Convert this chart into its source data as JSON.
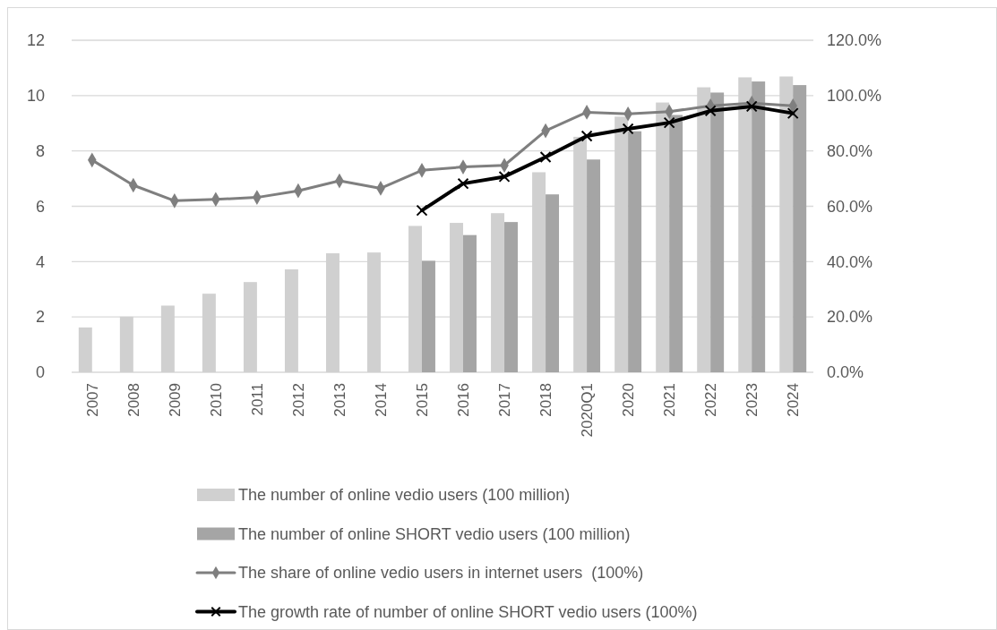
{
  "chart_data": {
    "type": "bar",
    "categories": [
      "2007",
      "2008",
      "2009",
      "2010",
      "2011",
      "2012",
      "2013",
      "2014",
      "2015",
      "2016",
      "2017",
      "2018",
      "2020Q1",
      "2020",
      "2021",
      "2022",
      "2023",
      "2024"
    ],
    "series": [
      {
        "name": "The number of online vedio users (100 million)",
        "color": "#d0d0d0",
        "values": [
          1.62,
          2.01,
          2.41,
          2.84,
          3.26,
          3.72,
          4.3,
          4.33,
          5.29,
          5.4,
          5.75,
          7.23,
          8.51,
          9.24,
          9.75,
          10.3,
          10.66,
          10.69
        ]
      },
      {
        "name": "The number of online SHORT vedio users (100 million)",
        "color": "#a5a5a5",
        "values": [
          null,
          null,
          null,
          null,
          null,
          null,
          null,
          null,
          4.03,
          4.96,
          5.43,
          6.43,
          7.69,
          8.71,
          9.3,
          10.11,
          10.51,
          10.38
        ]
      },
      {
        "name": "The share of online vedio users in internet users  (100%)",
        "type": "line",
        "axis": "y2",
        "color": "#7f7f7f",
        "marker": "diamond",
        "values": [
          76.7,
          67.6,
          62.0,
          62.5,
          63.2,
          65.6,
          69.2,
          66.5,
          73.0,
          74.2,
          74.8,
          87.3,
          94.0,
          93.4,
          94.2,
          96.3,
          97.3,
          96.3
        ]
      },
      {
        "name": "The growth rate of number of online SHORT vedio users (100%)",
        "type": "line",
        "axis": "y2",
        "color": "#000000",
        "marker": "cross",
        "values": [
          null,
          null,
          null,
          null,
          null,
          null,
          null,
          null,
          58.5,
          68.2,
          70.7,
          77.8,
          85.4,
          88.0,
          90.2,
          94.5,
          96.1,
          93.6
        ]
      }
    ],
    "ylim": [
      0,
      12
    ],
    "yticks": [
      0,
      2,
      4,
      6,
      8,
      10,
      12
    ],
    "y2lim": [
      0,
      120
    ],
    "y2ticks": [
      {
        "value": 0,
        "label": "0.0%"
      },
      {
        "value": 20,
        "label": "20.0%"
      },
      {
        "value": 40,
        "label": "40.0%"
      },
      {
        "value": 60,
        "label": "60.0%"
      },
      {
        "value": 80,
        "label": "80.0%"
      },
      {
        "value": 100,
        "label": "100.0%"
      },
      {
        "value": 120,
        "label": "120.0%"
      }
    ],
    "grid": "y",
    "legend": "bottom"
  }
}
